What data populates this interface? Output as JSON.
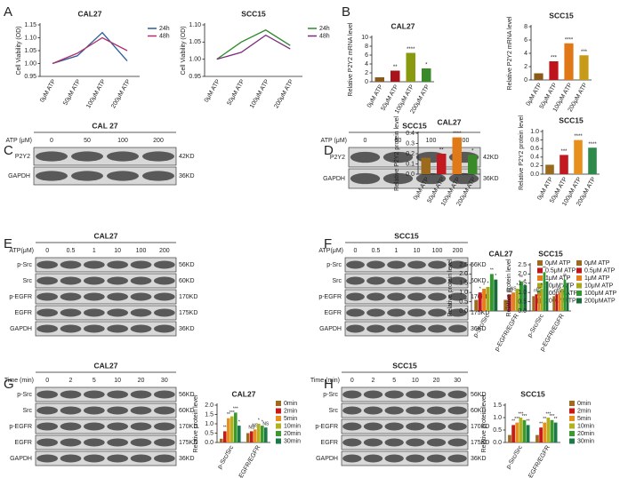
{
  "panel_letters": [
    "A",
    "B",
    "C",
    "D",
    "E",
    "F",
    "G",
    "H"
  ],
  "blots": [
    {
      "title": "CAL 27",
      "treatment": "ATP (μM)",
      "lanes": [
        "0",
        "50",
        "100",
        "200"
      ],
      "rows": [
        {
          "protein": "P2Y2",
          "size": "42KD"
        },
        {
          "protein": "GAPDH",
          "size": "36KD"
        }
      ]
    },
    {
      "title": "SCC15",
      "treatment": "ATP (μM)",
      "lanes": [
        "0",
        "50",
        "100",
        "200"
      ],
      "rows": [
        {
          "protein": "P2Y2",
          "size": "42KD"
        },
        {
          "protein": "GAPDH",
          "size": "36KD"
        }
      ]
    },
    {
      "title": "CAL27",
      "treatment": "ATP(μM)",
      "lanes": [
        "0",
        "0.5",
        "1",
        "10",
        "100",
        "200"
      ],
      "rows": [
        {
          "protein": "p-Src",
          "size": "56KD"
        },
        {
          "protein": "Src",
          "size": "60KD"
        },
        {
          "protein": "p-EGFR",
          "size": "170KD"
        },
        {
          "protein": "EGFR",
          "size": "175KD"
        },
        {
          "protein": "GAPDH",
          "size": "36KD"
        }
      ]
    },
    {
      "title": "SCC15",
      "treatment": "ATP(μM)",
      "lanes": [
        "0",
        "0.5",
        "1",
        "10",
        "100",
        "200"
      ],
      "rows": [
        {
          "protein": "p-Src",
          "size": "56KD"
        },
        {
          "protein": "Src",
          "size": "60KD"
        },
        {
          "protein": "p-EGFR",
          "size": "170KD"
        },
        {
          "protein": "EGFR",
          "size": "175KD"
        },
        {
          "protein": "GAPDH",
          "size": "36KD"
        }
      ]
    },
    {
      "title": "CAL27",
      "treatment": "Time (min)",
      "lanes": [
        "0",
        "2",
        "5",
        "10",
        "20",
        "30"
      ],
      "rows": [
        {
          "protein": "p-Src",
          "size": "56KD"
        },
        {
          "protein": "Src",
          "size": "60KD"
        },
        {
          "protein": "p-EGFR",
          "size": "170KD"
        },
        {
          "protein": "EGFR",
          "size": "175KD"
        },
        {
          "protein": "GAPDH",
          "size": "36KD"
        }
      ]
    },
    {
      "title": "SCC15",
      "treatment": "Time (min)",
      "lanes": [
        "0",
        "2",
        "5",
        "10",
        "20",
        "30"
      ],
      "rows": [
        {
          "protein": "p-Src",
          "size": "56KD"
        },
        {
          "protein": "Src",
          "size": "60KD"
        },
        {
          "protein": "p-EGFR",
          "size": "170KD"
        },
        {
          "protein": "EGFR",
          "size": "175KD"
        },
        {
          "protein": "GAPDH",
          "size": "36KD"
        }
      ]
    }
  ],
  "chart_data": [
    {
      "type": "line",
      "title": "CAL27",
      "y_label": "Cell Viability (OD)",
      "categories": [
        "0μM ATP",
        "50μM ATP",
        "100μM ATP",
        "200μM ATP"
      ],
      "ylim": [
        0.95,
        1.15
      ],
      "yticks": [
        0.95,
        {
          "value": 1,
          "label": "1.00"
        },
        1.05,
        {
          "value": 1.1,
          "label": "1.10"
        },
        1.15
      ],
      "series": [
        {
          "name": "24h",
          "color": "#2a5c9a",
          "values": [
            1.0,
            1.03,
            1.12,
            1.01
          ]
        },
        {
          "name": "48h",
          "color": "#b0306e",
          "values": [
            1.0,
            1.04,
            1.1,
            1.05
          ]
        }
      ]
    },
    {
      "type": "line",
      "title": "SCC15",
      "y_label": "Cell Viability (OD)",
      "categories": [
        "0μM ATP",
        "50μM ATP",
        "100μM ATP",
        "200μM ATP"
      ],
      "ylim": [
        0.95,
        1.1
      ],
      "yticks": [
        0.95,
        {
          "value": 1,
          "label": "1.00"
        },
        1.05,
        {
          "value": 1.1,
          "label": "1.10"
        }
      ],
      "series": [
        {
          "name": "24h",
          "color": "#2a8a2a",
          "values": [
            1.0,
            1.05,
            1.085,
            1.04
          ]
        },
        {
          "name": "48h",
          "color": "#7a2a7a",
          "values": [
            1.0,
            1.02,
            1.07,
            1.03
          ]
        }
      ]
    },
    {
      "type": "bar",
      "title": "CAL27",
      "y_label": "Relative P2Y2 mRNA level",
      "categories": [
        "0μM ATP",
        "50μM ATP",
        "100μM ATP",
        "200μM ATP"
      ],
      "values": [
        1,
        2.5,
        6.5,
        3
      ],
      "colors": [
        "#8b5a1a",
        "#a8141c",
        "#8a9a10",
        "#3a8a2a"
      ],
      "annotations": [
        null,
        "**",
        "****",
        "*"
      ],
      "ylim": [
        0,
        10
      ],
      "yticks": [
        0,
        2,
        4,
        6,
        8,
        10
      ]
    },
    {
      "type": "bar",
      "title": "SCC15",
      "y_label": "Relative P2Y2 mRNA level",
      "categories": [
        "0μM ATP",
        "50μM ATP",
        "100μM ATP",
        "200μM ATP"
      ],
      "values": [
        1,
        2.8,
        5.5,
        3.7
      ],
      "colors": [
        "#8b5a1a",
        "#c0141c",
        "#e07818",
        "#c89a1a"
      ],
      "annotations": [
        null,
        "***",
        "****",
        "***"
      ],
      "ylim": [
        0,
        8
      ],
      "yticks": [
        0,
        2,
        4,
        6,
        8
      ]
    },
    {
      "type": "bar",
      "title": "CAL27",
      "y_label": "Relative P2Y2 protein level",
      "categories": [
        "0μM ATP",
        "50μM ATP",
        "100μM ATP",
        "200μM ATP"
      ],
      "values": [
        0.16,
        0.2,
        0.36,
        0.19
      ],
      "colors": [
        "#9c6a1c",
        "#c41820",
        "#e07a18",
        "#3a8a2a"
      ],
      "annotations": [
        null,
        "**",
        "****",
        "*"
      ],
      "ylim": [
        0,
        0.4
      ],
      "yticks": [
        {
          "value": 0,
          "label": "0.0"
        },
        0.1,
        0.2,
        0.3,
        0.4
      ]
    },
    {
      "type": "bar",
      "title": "SCC15",
      "y_label": "Relative P2Y2 protein level",
      "categories": [
        "0μM ATP",
        "50μM ATP",
        "100μM ATP",
        "200μM ATP"
      ],
      "values": [
        0.22,
        0.45,
        0.8,
        0.62
      ],
      "colors": [
        "#9c6a1c",
        "#c41820",
        "#e8901e",
        "#2e8a4a"
      ],
      "annotations": [
        null,
        "***",
        "****",
        "****"
      ],
      "ylim": [
        0,
        1
      ],
      "yticks": [
        {
          "value": 0,
          "label": "0.0"
        },
        0.2,
        0.4,
        0.6,
        0.8,
        {
          "value": 1,
          "label": "1.0"
        }
      ]
    },
    {
      "type": "bar",
      "title": "CAL27",
      "y_label": "Relative protein level",
      "categories": [
        "p-Src/Src",
        "p-EGFR/EGFR"
      ],
      "ylim": [
        0,
        2.5
      ],
      "yticks": [
        {
          "value": 0,
          "label": "0.0"
        },
        0.5,
        {
          "value": 1,
          "label": "1.0"
        },
        1.5,
        {
          "value": 2,
          "label": "2.0"
        },
        2.5
      ],
      "series": [
        {
          "name": "0μM ATP",
          "color": "#9c6a1c",
          "values": [
            0.6,
            0.6
          ],
          "annotations": [
            null,
            null
          ]
        },
        {
          "name": "0.5μM ATP",
          "color": "#c0141c",
          "values": [
            1.0,
            0.9
          ],
          "annotations": [
            "*",
            "NS"
          ]
        },
        {
          "name": "1μM ATP",
          "color": "#e87d1e",
          "values": [
            1.2,
            1.0
          ],
          "annotations": [
            "*",
            "NS"
          ]
        },
        {
          "name": "10μM ATP",
          "color": "#a8a81c",
          "values": [
            1.3,
            1.2
          ],
          "annotations": [
            "*",
            "*"
          ]
        },
        {
          "name": "100μM ATP",
          "color": "#2e9a2e",
          "values": [
            2.0,
            1.6
          ],
          "annotations": [
            "**",
            "**"
          ]
        },
        {
          "name": "200μMATP",
          "color": "#1a6a3a",
          "values": [
            1.7,
            1.4
          ],
          "annotations": [
            "*",
            "*"
          ]
        }
      ]
    },
    {
      "type": "bar",
      "title": "SCC15",
      "y_label": "Relative protein level",
      "categories": [
        "p-Src/Src",
        "p-EGFR/EGFR"
      ],
      "ylim": [
        0,
        2.5
      ],
      "yticks": [
        {
          "value": 0,
          "label": "0.0"
        },
        0.5,
        {
          "value": 1,
          "label": "1.0"
        },
        1.5,
        {
          "value": 2,
          "label": "2.0"
        },
        2.5
      ],
      "series": [
        {
          "name": "0μM ATP",
          "color": "#9c6a1c",
          "values": [
            0.8,
            0.8
          ],
          "annotations": [
            null,
            null
          ]
        },
        {
          "name": "0.5μM ATP",
          "color": "#c0141c",
          "values": [
            0.9,
            0.9
          ],
          "annotations": [
            "ns",
            "ns"
          ]
        },
        {
          "name": "1μM ATP",
          "color": "#e87d1e",
          "values": [
            1.0,
            1.0
          ],
          "annotations": [
            "ns",
            "ns"
          ]
        },
        {
          "name": "10μM ATP",
          "color": "#a8a81c",
          "values": [
            1.2,
            1.2
          ],
          "annotations": [
            "*",
            "*"
          ]
        },
        {
          "name": "100μM ATP",
          "color": "#2e9a2e",
          "values": [
            2.1,
            1.7
          ],
          "annotations": [
            "**",
            "**"
          ]
        },
        {
          "name": "200μMATP",
          "color": "#1a6a3a",
          "values": [
            1.6,
            1.5
          ],
          "annotations": [
            "*",
            "*"
          ]
        }
      ]
    },
    {
      "type": "bar",
      "title": "CAL27",
      "y_label": "Relative protein level",
      "categories": [
        "p-Src/Src",
        "p-EGFR/EGFR"
      ],
      "ylim": [
        0,
        2
      ],
      "yticks": [
        {
          "value": 0,
          "label": "0.0"
        },
        0.5,
        {
          "value": 1,
          "label": "1.0"
        },
        1.5,
        {
          "value": 2,
          "label": "2.0"
        }
      ],
      "series": [
        {
          "name": "0min",
          "color": "#a06a1e",
          "values": [
            0.2,
            0.5
          ],
          "annotations": [
            null,
            null
          ]
        },
        {
          "name": "2min",
          "color": "#c81818",
          "values": [
            0.6,
            0.6
          ],
          "annotations": [
            "**",
            "NS"
          ]
        },
        {
          "name": "5min",
          "color": "#e8901e",
          "values": [
            1.3,
            0.7
          ],
          "annotations": [
            "**",
            "NS"
          ]
        },
        {
          "name": "10min",
          "color": "#b4b01e",
          "values": [
            1.4,
            1.0
          ],
          "annotations": [
            "***",
            "*"
          ]
        },
        {
          "name": "20min",
          "color": "#3a9a2e",
          "values": [
            1.6,
            0.9
          ],
          "annotations": [
            "***",
            "*"
          ]
        },
        {
          "name": "30min",
          "color": "#1a7a4a",
          "values": [
            0.9,
            0.8
          ],
          "annotations": [
            "*",
            "NS"
          ]
        }
      ]
    },
    {
      "type": "bar",
      "title": "SCC15",
      "y_label": "Relative protein level",
      "categories": [
        "p-Src/Src",
        "p-EGFR/EGFR"
      ],
      "ylim": [
        0,
        1.5
      ],
      "yticks": [
        {
          "value": 0,
          "label": "0.0"
        },
        0.5,
        {
          "value": 1,
          "label": "1.0"
        },
        1.5
      ],
      "series": [
        {
          "name": "0min",
          "color": "#a06a1e",
          "values": [
            0.3,
            0.3
          ],
          "annotations": [
            null,
            null
          ]
        },
        {
          "name": "2min",
          "color": "#c81818",
          "values": [
            0.7,
            0.6
          ],
          "annotations": [
            "**",
            "**"
          ]
        },
        {
          "name": "5min",
          "color": "#e8901e",
          "values": [
            0.8,
            0.8
          ],
          "annotations": [
            "***",
            "**"
          ]
        },
        {
          "name": "10min",
          "color": "#b4b01e",
          "values": [
            1.0,
            1.0
          ],
          "annotations": [
            "***",
            "***"
          ]
        },
        {
          "name": "20min",
          "color": "#3a9a2e",
          "values": [
            0.9,
            0.9
          ],
          "annotations": [
            "***",
            "***"
          ]
        },
        {
          "name": "30min",
          "color": "#1a7a4a",
          "values": [
            0.7,
            0.8
          ],
          "annotations": [
            "**",
            "**"
          ]
        }
      ]
    }
  ]
}
